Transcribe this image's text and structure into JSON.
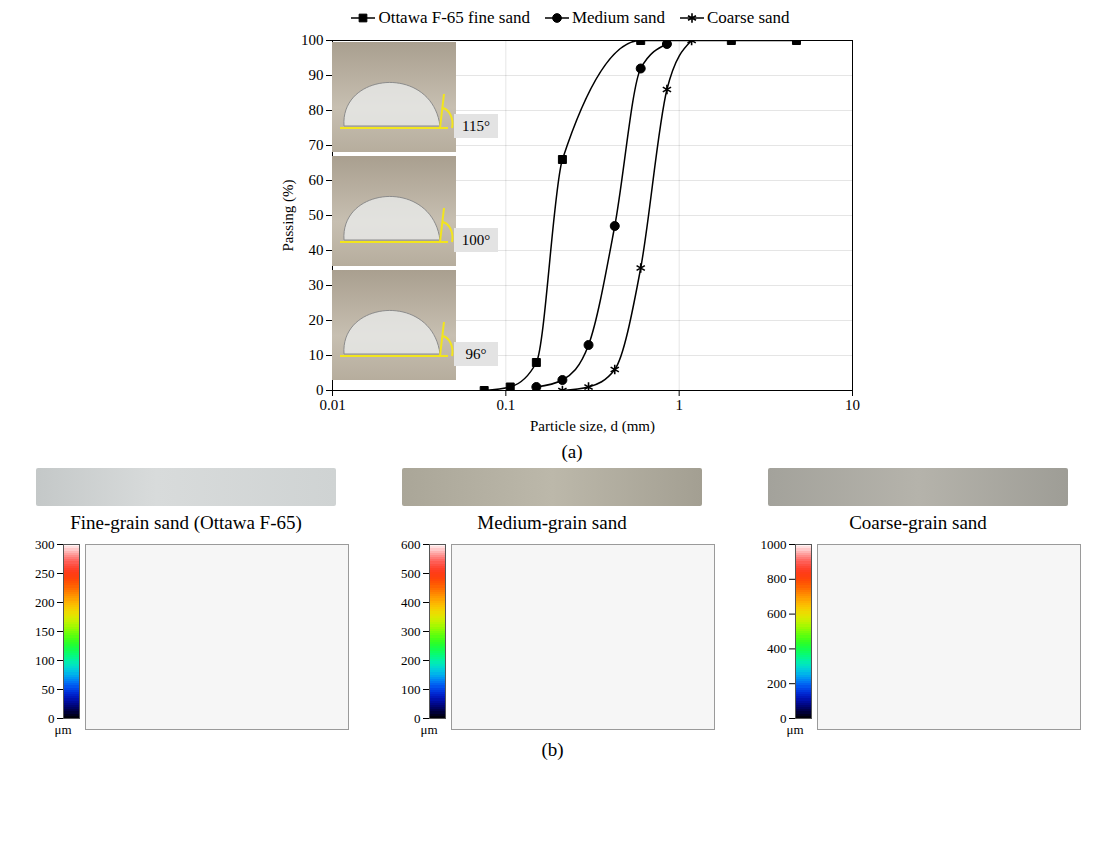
{
  "chart_data": {
    "type": "line",
    "caption": "(a)",
    "x_label": "Particle size, d (mm)",
    "y_label": "Passing (%)",
    "log": "x",
    "grid": true,
    "legend": "top",
    "xlim": [
      0.01,
      10
    ],
    "xticks": [
      0.01,
      0.1,
      1,
      10
    ],
    "ylim": [
      0,
      100
    ],
    "yticks": [
      0,
      10,
      20,
      30,
      40,
      50,
      60,
      70,
      80,
      90,
      100
    ],
    "annotations": [
      "115°",
      "100°",
      "96°"
    ],
    "series": [
      {
        "name": "Ottawa F-65 fine sand",
        "color": "#000000",
        "marker": "square",
        "x": [
          0.075,
          0.106,
          0.15,
          0.212,
          0.6,
          2,
          4.75
        ],
        "values": [
          0,
          1,
          8,
          66,
          100,
          100,
          100
        ]
      },
      {
        "name": "Medium sand",
        "color": "#000000",
        "marker": "circle",
        "x": [
          0.15,
          0.212,
          0.3,
          0.425,
          0.6,
          0.85
        ],
        "values": [
          1,
          3,
          13,
          47,
          92,
          99
        ]
      },
      {
        "name": "Coarse sand",
        "color": "#000000",
        "marker": "asterisk",
        "x": [
          0.212,
          0.3,
          0.425,
          0.6,
          0.85,
          1.18
        ],
        "values": [
          0,
          1,
          6,
          35,
          86,
          100
        ]
      }
    ]
  },
  "panel_b": {
    "caption": "(b)",
    "samples": [
      {
        "title": "Fine-grain sand (Ottawa F-65)",
        "colorbar": {
          "range": [
            0,
            300
          ],
          "ticks": [
            0,
            50,
            100,
            150,
            200,
            250,
            300
          ],
          "unit": "μm"
        }
      },
      {
        "title": "Medium-grain sand",
        "colorbar": {
          "range": [
            0,
            600
          ],
          "ticks": [
            0,
            100,
            200,
            300,
            400,
            500,
            600
          ],
          "unit": "μm"
        }
      },
      {
        "title": "Coarse-grain sand",
        "colorbar": {
          "range": [
            0,
            1000
          ],
          "ticks": [
            0,
            200,
            400,
            600,
            800,
            1000
          ],
          "unit": "μm"
        }
      }
    ]
  }
}
